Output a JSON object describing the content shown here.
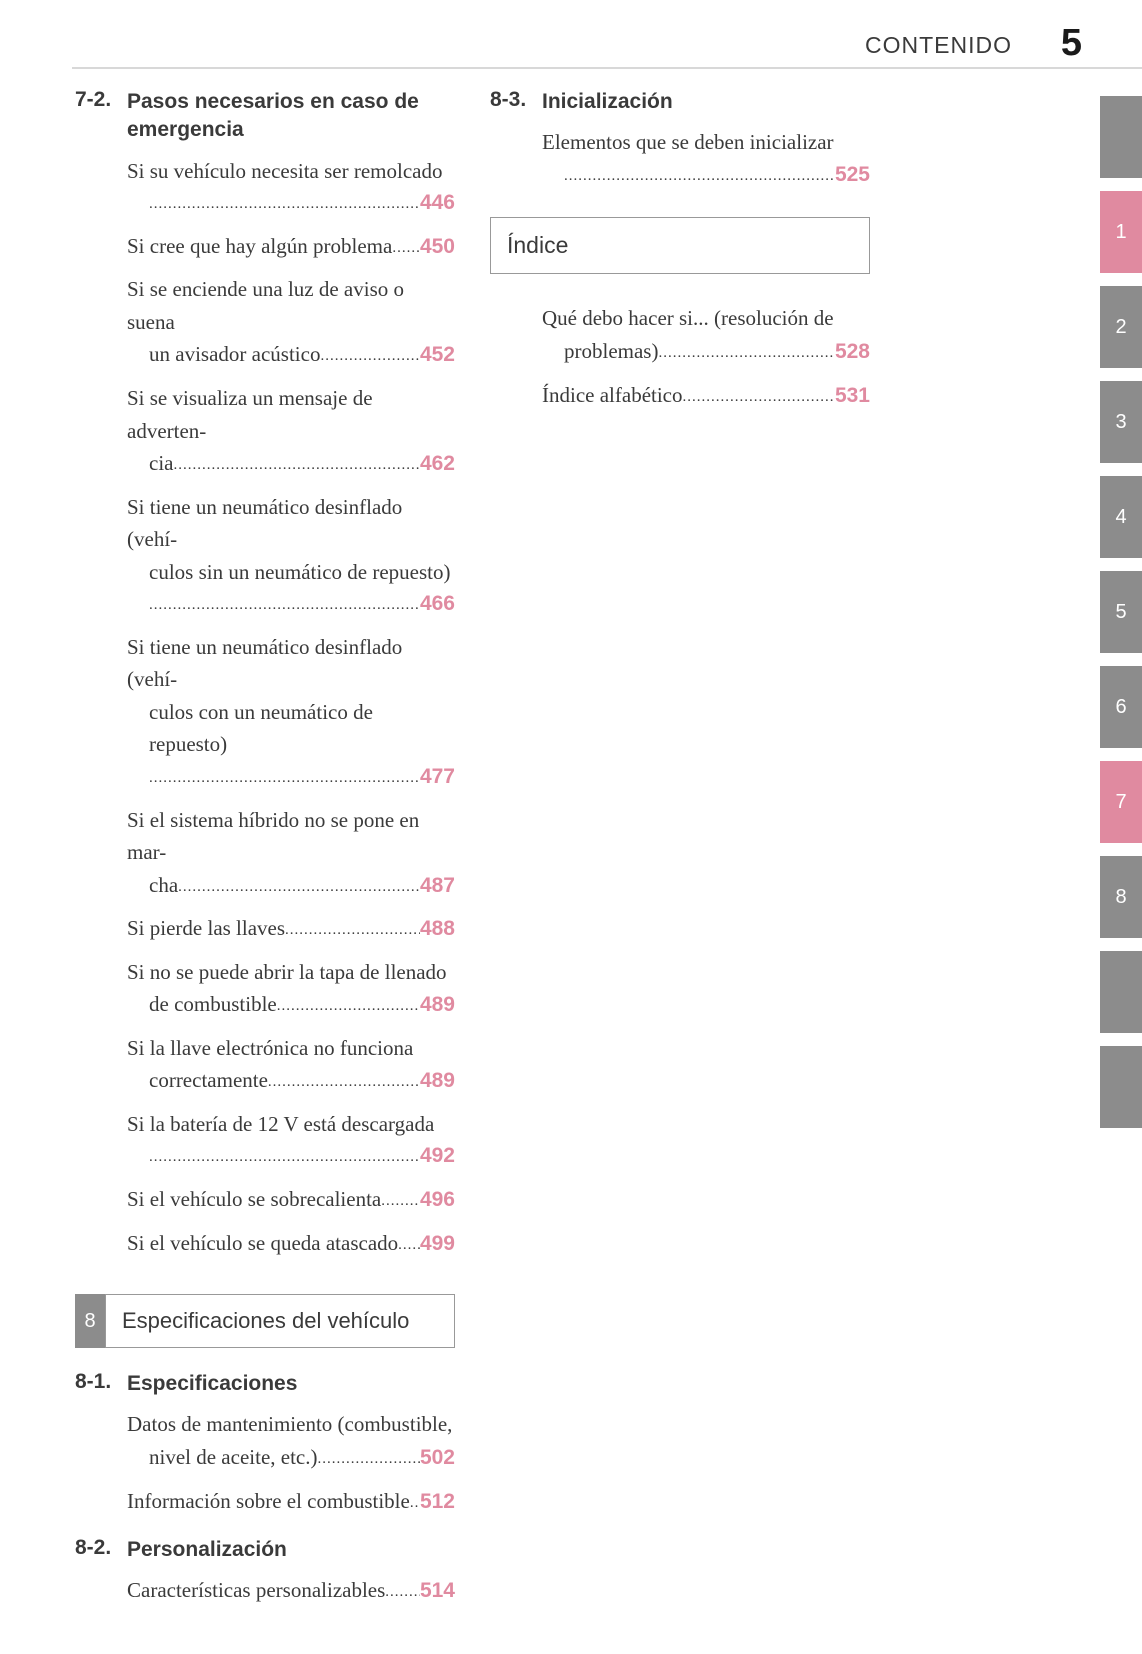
{
  "header": {
    "title": "CONTENIDO",
    "page": "5"
  },
  "colors": {
    "accent": "#e08aa0",
    "tab_gray": "#8c8c8c",
    "text": "#3a3a3a"
  },
  "side_tabs": [
    {
      "label": "",
      "color": "#8c8c8c"
    },
    {
      "label": "1",
      "color": "#e08aa0"
    },
    {
      "label": "2",
      "color": "#8c8c8c"
    },
    {
      "label": "3",
      "color": "#8c8c8c"
    },
    {
      "label": "4",
      "color": "#8c8c8c"
    },
    {
      "label": "5",
      "color": "#8c8c8c"
    },
    {
      "label": "6",
      "color": "#8c8c8c"
    },
    {
      "label": "7",
      "color": "#e08aa0"
    },
    {
      "label": "8",
      "color": "#8c8c8c"
    },
    {
      "label": "",
      "color": "#8c8c8c"
    },
    {
      "label": "",
      "color": "#8c8c8c"
    }
  ],
  "left": {
    "sec72": {
      "num": "7-2.",
      "title": "Pasos necesarios en caso de emergencia"
    },
    "e1": {
      "l1": "Si su vehículo necesita ser remolcado",
      "pg": "446"
    },
    "e2": {
      "l1": "Si cree que hay algún problema",
      "pg": "450"
    },
    "e3": {
      "l1": "Si se enciende una luz de aviso o suena",
      "l2": "un avisador acústico",
      "pg": "452"
    },
    "e4": {
      "l1": "Si se visualiza un mensaje de adverten-",
      "l2": "cia",
      "pg": "462"
    },
    "e5": {
      "l1": "Si tiene un neumático desinflado (vehí-",
      "l2": "culos sin un neumático de repuesto)",
      "pg": "466"
    },
    "e6": {
      "l1": "Si tiene un neumático desinflado (vehí-",
      "l2": "culos con un neumático de repuesto)",
      "pg": "477"
    },
    "e7": {
      "l1": "Si el sistema híbrido no se pone en mar-",
      "l2": "cha",
      "pg": "487"
    },
    "e8": {
      "l1": "Si pierde las llaves",
      "pg": "488"
    },
    "e9": {
      "l1": "Si no se puede abrir la tapa de llenado",
      "l2": "de combustible",
      "pg": "489"
    },
    "e10": {
      "l1": "Si la llave electrónica no funciona",
      "l2": "correctamente",
      "pg": "489"
    },
    "e11": {
      "l1": "Si la batería de 12 V está descargada",
      "pg": "492"
    },
    "e12": {
      "l1": "Si el vehículo se sobrecalienta",
      "pg": "496"
    },
    "e13": {
      "l1": "Si el vehículo se queda atascado",
      "pg": "499"
    },
    "chapter8": {
      "tag": "8",
      "label": "Especificaciones del vehículo",
      "tag_color": "#8c8c8c"
    },
    "sec81": {
      "num": "8-1.",
      "title": "Especificaciones"
    },
    "e14": {
      "l1": "Datos de mantenimiento (combustible,",
      "l2": "nivel de aceite, etc.)",
      "pg": "502"
    },
    "e15": {
      "l1": "Información sobre el combustible",
      "pg": "512"
    },
    "sec82": {
      "num": "8-2.",
      "title": "Personalización"
    },
    "e16": {
      "l1": "Características personalizables",
      "pg": "514"
    }
  },
  "right": {
    "sec83": {
      "num": "8-3.",
      "title": "Inicialización"
    },
    "r1": {
      "l1": "Elementos que se deben inicializar",
      "pg": "525"
    },
    "index_label": "Índice",
    "r2": {
      "l1": "Qué debo hacer si... (resolución de",
      "l2": "problemas)",
      "pg": "528"
    },
    "r3": {
      "l1": "Índice alfabético",
      "pg": "531"
    }
  }
}
